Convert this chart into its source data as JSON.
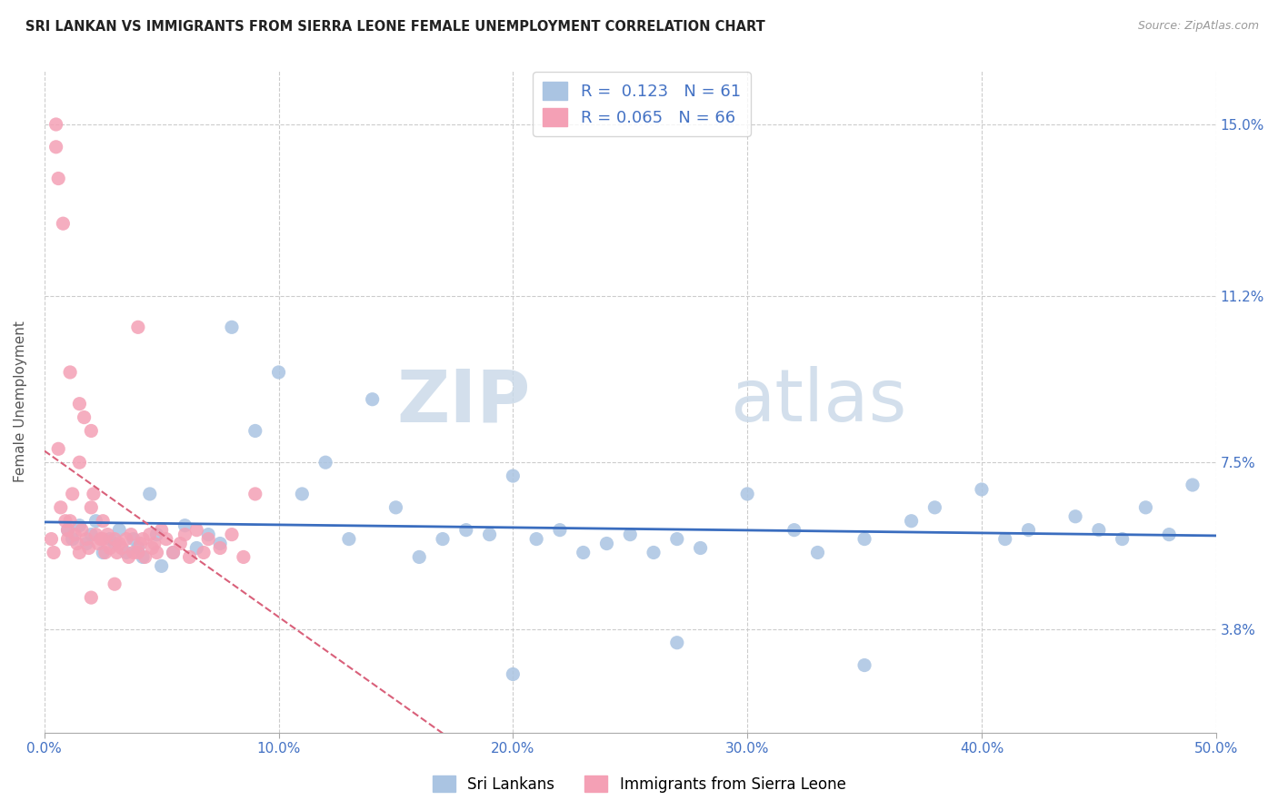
{
  "title": "SRI LANKAN VS IMMIGRANTS FROM SIERRA LEONE FEMALE UNEMPLOYMENT CORRELATION CHART",
  "source": "Source: ZipAtlas.com",
  "ylabel": "Female Unemployment",
  "right_yticks": [
    3.8,
    7.5,
    11.2,
    15.0
  ],
  "right_ytick_labels": [
    "3.8%",
    "7.5%",
    "11.2%",
    "15.0%"
  ],
  "xmin": 0.0,
  "xmax": 50.0,
  "ymin": 1.5,
  "ymax": 16.2,
  "sri_lankans_R": 0.123,
  "sri_lankans_N": 61,
  "sierra_leone_R": 0.065,
  "sierra_leone_N": 66,
  "sri_lankans_color": "#aac4e2",
  "sierra_leone_color": "#f4a0b5",
  "sri_lankans_line_color": "#3a6dbf",
  "sierra_leone_line_color": "#d9607a",
  "watermark_zip": "ZIP",
  "watermark_atlas": "atlas",
  "sri_lankans_x": [
    1.0,
    1.2,
    1.5,
    1.8,
    2.0,
    2.2,
    2.5,
    2.8,
    3.0,
    3.2,
    3.5,
    3.8,
    4.0,
    4.2,
    4.5,
    4.8,
    5.0,
    5.5,
    6.0,
    6.5,
    7.0,
    7.5,
    8.0,
    9.0,
    10.0,
    11.0,
    12.0,
    13.0,
    14.0,
    15.0,
    16.0,
    17.0,
    18.0,
    19.0,
    20.0,
    21.0,
    22.0,
    23.0,
    24.0,
    25.0,
    26.0,
    27.0,
    28.0,
    30.0,
    32.0,
    33.0,
    35.0,
    37.0,
    38.0,
    40.0,
    41.0,
    42.0,
    44.0,
    45.0,
    46.0,
    47.0,
    48.0,
    49.0,
    20.0,
    27.0,
    35.0
  ],
  "sri_lankans_y": [
    6.0,
    5.8,
    6.1,
    5.7,
    5.9,
    6.2,
    5.5,
    5.8,
    5.7,
    6.0,
    5.5,
    5.8,
    5.6,
    5.4,
    6.8,
    5.9,
    5.2,
    5.5,
    6.1,
    5.6,
    5.9,
    5.7,
    10.5,
    8.2,
    9.5,
    6.8,
    7.5,
    5.8,
    8.9,
    6.5,
    5.4,
    5.8,
    6.0,
    5.9,
    7.2,
    5.8,
    6.0,
    5.5,
    5.7,
    5.9,
    5.5,
    5.8,
    5.6,
    6.8,
    6.0,
    5.5,
    5.8,
    6.2,
    6.5,
    6.9,
    5.8,
    6.0,
    6.3,
    6.0,
    5.8,
    6.5,
    5.9,
    7.0,
    2.8,
    3.5,
    3.0
  ],
  "sierra_leone_x": [
    0.3,
    0.4,
    0.5,
    0.5,
    0.6,
    0.7,
    0.8,
    0.9,
    1.0,
    1.0,
    1.1,
    1.2,
    1.3,
    1.4,
    1.5,
    1.5,
    1.6,
    1.7,
    1.8,
    1.9,
    2.0,
    2.0,
    2.1,
    2.2,
    2.3,
    2.4,
    2.5,
    2.6,
    2.7,
    2.8,
    3.0,
    3.1,
    3.2,
    3.3,
    3.5,
    3.6,
    3.7,
    3.8,
    4.0,
    4.1,
    4.2,
    4.3,
    4.5,
    4.6,
    4.7,
    4.8,
    5.0,
    5.2,
    5.5,
    5.8,
    6.0,
    6.2,
    6.5,
    6.8,
    7.0,
    7.5,
    8.0,
    8.5,
    9.0,
    0.6,
    1.1,
    1.5,
    2.0,
    2.5,
    3.0,
    4.0
  ],
  "sierra_leone_y": [
    5.8,
    5.5,
    15.0,
    14.5,
    13.8,
    6.5,
    12.8,
    6.2,
    5.8,
    6.0,
    6.2,
    6.8,
    5.9,
    5.7,
    7.5,
    5.5,
    6.0,
    8.5,
    5.8,
    5.6,
    8.2,
    6.5,
    6.8,
    5.9,
    5.7,
    5.8,
    6.2,
    5.5,
    5.9,
    5.6,
    5.8,
    5.5,
    5.7,
    5.6,
    5.8,
    5.4,
    5.9,
    5.5,
    5.5,
    5.7,
    5.8,
    5.4,
    5.9,
    5.6,
    5.7,
    5.5,
    6.0,
    5.8,
    5.5,
    5.7,
    5.9,
    5.4,
    6.0,
    5.5,
    5.8,
    5.6,
    5.9,
    5.4,
    6.8,
    7.8,
    9.5,
    8.8,
    4.5,
    5.8,
    4.8,
    10.5
  ]
}
